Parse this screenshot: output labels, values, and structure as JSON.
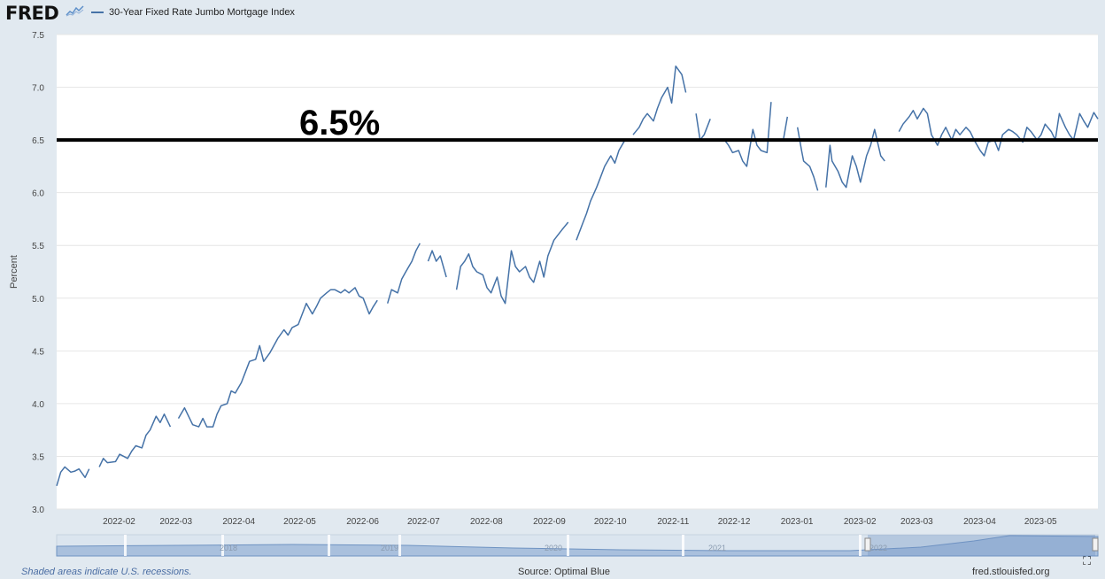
{
  "header": {
    "logo_text": "FRED",
    "legend_label": "30-Year Fixed Rate Jumbo Mortgage Index"
  },
  "colors": {
    "series": "#4572a7",
    "plot_bg": "#ffffff",
    "frame_bg": "#e1e9f0",
    "grid": "#e6e6e6",
    "reference_line": "#000000"
  },
  "footer": {
    "recession_note": "Shaded areas indicate U.S. recessions.",
    "source": "Source: Optimal Blue",
    "site": "fred.stlouisfed.org",
    "fullscreen_icon": "fullscreen-icon"
  },
  "navigator": {
    "labels": [
      "2018",
      "2019",
      "2020",
      "2021",
      "2022"
    ]
  },
  "chart_data": {
    "type": "line",
    "title": "",
    "xlabel": "",
    "ylabel": "Percent",
    "ylim": [
      3.0,
      7.5
    ],
    "y_ticks": [
      "3.0",
      "3.5",
      "4.0",
      "4.5",
      "5.0",
      "5.5",
      "6.0",
      "6.5",
      "7.0",
      "7.5"
    ],
    "x_range": [
      "2022-01-03",
      "2023-05-31"
    ],
    "x_ticks": [
      {
        "label": "2022-02",
        "date": "2022-02-01"
      },
      {
        "label": "2022-03",
        "date": "2022-03-01"
      },
      {
        "label": "2022-04",
        "date": "2022-04-01"
      },
      {
        "label": "2022-05",
        "date": "2022-05-01"
      },
      {
        "label": "2022-06",
        "date": "2022-06-01"
      },
      {
        "label": "2022-07",
        "date": "2022-07-01"
      },
      {
        "label": "2022-08",
        "date": "2022-08-01"
      },
      {
        "label": "2022-09",
        "date": "2022-09-01"
      },
      {
        "label": "2022-10",
        "date": "2022-10-01"
      },
      {
        "label": "2022-11",
        "date": "2022-11-01"
      },
      {
        "label": "2022-12",
        "date": "2022-12-01"
      },
      {
        "label": "2023-01",
        "date": "2023-01-01"
      },
      {
        "label": "2023-02",
        "date": "2023-02-01"
      },
      {
        "label": "2023-03",
        "date": "2023-03-01"
      },
      {
        "label": "2023-04",
        "date": "2023-04-01"
      },
      {
        "label": "2023-05",
        "date": "2023-05-01"
      }
    ],
    "grid": true,
    "legend_position": "top-left",
    "annotation": {
      "text": "6.5%",
      "y": 6.5
    },
    "series": [
      {
        "name": "30-Year Fixed Rate Jumbo Mortgage Index",
        "points": [
          [
            "2022-01-03",
            3.22
          ],
          [
            "2022-01-05",
            3.35
          ],
          [
            "2022-01-07",
            3.4
          ],
          [
            "2022-01-10",
            3.35
          ],
          [
            "2022-01-12",
            3.36
          ],
          [
            "2022-01-14",
            3.38
          ],
          [
            "2022-01-17",
            3.3
          ],
          [
            "2022-01-19",
            3.38
          ],
          [
            "2022-01-21",
            null
          ],
          [
            "2022-01-24",
            3.4
          ],
          [
            "2022-01-26",
            3.48
          ],
          [
            "2022-01-28",
            3.44
          ],
          [
            "2022-02-01",
            3.45
          ],
          [
            "2022-02-03",
            3.52
          ],
          [
            "2022-02-07",
            3.48
          ],
          [
            "2022-02-09",
            3.55
          ],
          [
            "2022-02-11",
            3.6
          ],
          [
            "2022-02-14",
            3.58
          ],
          [
            "2022-02-16",
            3.7
          ],
          [
            "2022-02-18",
            3.75
          ],
          [
            "2022-02-21",
            3.88
          ],
          [
            "2022-02-23",
            3.82
          ],
          [
            "2022-02-25",
            3.9
          ],
          [
            "2022-02-28",
            3.78
          ],
          [
            "2022-03-02",
            null
          ],
          [
            "2022-03-04",
            3.86
          ],
          [
            "2022-03-07",
            3.96
          ],
          [
            "2022-03-09",
            3.88
          ],
          [
            "2022-03-11",
            3.8
          ],
          [
            "2022-03-14",
            3.78
          ],
          [
            "2022-03-16",
            3.86
          ],
          [
            "2022-03-18",
            3.78
          ],
          [
            "2022-03-21",
            3.78
          ],
          [
            "2022-03-23",
            3.9
          ],
          [
            "2022-03-25",
            3.98
          ],
          [
            "2022-03-28",
            4.0
          ],
          [
            "2022-03-30",
            4.12
          ],
          [
            "2022-04-01",
            4.1
          ],
          [
            "2022-04-04",
            4.2
          ],
          [
            "2022-04-06",
            4.3
          ],
          [
            "2022-04-08",
            4.4
          ],
          [
            "2022-04-11",
            4.42
          ],
          [
            "2022-04-13",
            4.55
          ],
          [
            "2022-04-15",
            4.4
          ],
          [
            "2022-04-18",
            4.48
          ],
          [
            "2022-04-20",
            4.55
          ],
          [
            "2022-04-22",
            4.62
          ],
          [
            "2022-04-25",
            4.7
          ],
          [
            "2022-04-27",
            4.65
          ],
          [
            "2022-04-29",
            4.72
          ],
          [
            "2022-05-02",
            4.75
          ],
          [
            "2022-05-04",
            4.85
          ],
          [
            "2022-05-06",
            4.95
          ],
          [
            "2022-05-09",
            4.85
          ],
          [
            "2022-05-11",
            4.92
          ],
          [
            "2022-05-13",
            5.0
          ],
          [
            "2022-05-16",
            5.05
          ],
          [
            "2022-05-18",
            5.08
          ],
          [
            "2022-05-20",
            5.08
          ],
          [
            "2022-05-23",
            5.05
          ],
          [
            "2022-05-25",
            5.08
          ],
          [
            "2022-05-27",
            5.05
          ],
          [
            "2022-05-30",
            5.1
          ],
          [
            "2022-06-01",
            5.02
          ],
          [
            "2022-06-03",
            5.0
          ],
          [
            "2022-06-06",
            4.85
          ],
          [
            "2022-06-08",
            4.92
          ],
          [
            "2022-06-10",
            4.98
          ],
          [
            "2022-06-13",
            null
          ],
          [
            "2022-06-15",
            4.95
          ],
          [
            "2022-06-17",
            5.08
          ],
          [
            "2022-06-20",
            5.05
          ],
          [
            "2022-06-22",
            5.18
          ],
          [
            "2022-06-24",
            5.25
          ],
          [
            "2022-06-27",
            5.35
          ],
          [
            "2022-06-29",
            5.45
          ],
          [
            "2022-07-01",
            5.52
          ],
          [
            "2022-07-03",
            null
          ],
          [
            "2022-07-05",
            5.35
          ],
          [
            "2022-07-07",
            5.45
          ],
          [
            "2022-07-09",
            5.35
          ],
          [
            "2022-07-11",
            5.4
          ],
          [
            "2022-07-14",
            5.2
          ],
          [
            "2022-07-16",
            null
          ],
          [
            "2022-07-19",
            5.08
          ],
          [
            "2022-07-21",
            5.3
          ],
          [
            "2022-07-23",
            5.35
          ],
          [
            "2022-07-25",
            5.42
          ],
          [
            "2022-07-27",
            5.3
          ],
          [
            "2022-07-29",
            5.25
          ],
          [
            "2022-08-01",
            5.22
          ],
          [
            "2022-08-03",
            5.1
          ],
          [
            "2022-08-05",
            5.05
          ],
          [
            "2022-08-08",
            5.2
          ],
          [
            "2022-08-10",
            5.02
          ],
          [
            "2022-08-12",
            4.95
          ],
          [
            "2022-08-15",
            5.45
          ],
          [
            "2022-08-17",
            5.3
          ],
          [
            "2022-08-19",
            5.25
          ],
          [
            "2022-08-22",
            5.3
          ],
          [
            "2022-08-24",
            5.2
          ],
          [
            "2022-08-26",
            5.15
          ],
          [
            "2022-08-29",
            5.35
          ],
          [
            "2022-08-31",
            5.2
          ],
          [
            "2022-09-02",
            5.4
          ],
          [
            "2022-09-05",
            5.55
          ],
          [
            "2022-09-07",
            5.6
          ],
          [
            "2022-09-09",
            5.65
          ],
          [
            "2022-09-12",
            5.72
          ],
          [
            "2022-09-14",
            null
          ],
          [
            "2022-09-16",
            5.55
          ],
          [
            "2022-09-19",
            5.7
          ],
          [
            "2022-09-21",
            5.8
          ],
          [
            "2022-09-23",
            5.92
          ],
          [
            "2022-09-26",
            6.05
          ],
          [
            "2022-09-28",
            6.15
          ],
          [
            "2022-09-30",
            6.25
          ],
          [
            "2022-10-03",
            6.35
          ],
          [
            "2022-10-05",
            6.28
          ],
          [
            "2022-10-07",
            6.4
          ],
          [
            "2022-10-10",
            6.5
          ],
          [
            "2022-10-12",
            null
          ],
          [
            "2022-10-14",
            6.55
          ],
          [
            "2022-10-17",
            6.62
          ],
          [
            "2022-10-19",
            6.7
          ],
          [
            "2022-10-21",
            6.75
          ],
          [
            "2022-10-24",
            6.68
          ],
          [
            "2022-10-26",
            6.8
          ],
          [
            "2022-10-28",
            6.9
          ],
          [
            "2022-10-31",
            7.0
          ],
          [
            "2022-11-02",
            6.85
          ],
          [
            "2022-11-04",
            7.2
          ],
          [
            "2022-11-07",
            7.12
          ],
          [
            "2022-11-09",
            6.95
          ],
          [
            "2022-11-11",
            null
          ],
          [
            "2022-11-14",
            6.75
          ],
          [
            "2022-11-16",
            6.5
          ],
          [
            "2022-11-18",
            6.55
          ],
          [
            "2022-11-21",
            6.7
          ],
          [
            "2022-11-23",
            null
          ],
          [
            "2022-11-28",
            6.5
          ],
          [
            "2022-11-30",
            6.45
          ],
          [
            "2022-12-02",
            6.38
          ],
          [
            "2022-12-05",
            6.4
          ],
          [
            "2022-12-07",
            6.3
          ],
          [
            "2022-12-09",
            6.25
          ],
          [
            "2022-12-12",
            6.6
          ],
          [
            "2022-12-14",
            6.45
          ],
          [
            "2022-12-16",
            6.4
          ],
          [
            "2022-12-19",
            6.38
          ],
          [
            "2022-12-21",
            6.86
          ],
          [
            "2022-12-23",
            null
          ],
          [
            "2022-12-27",
            6.5
          ],
          [
            "2022-12-29",
            6.72
          ],
          [
            "2023-01-01",
            null
          ],
          [
            "2023-01-03",
            6.62
          ],
          [
            "2023-01-05",
            6.4
          ],
          [
            "2023-01-06",
            6.3
          ],
          [
            "2023-01-09",
            6.25
          ],
          [
            "2023-01-11",
            6.15
          ],
          [
            "2023-01-13",
            6.02
          ],
          [
            "2023-01-15",
            null
          ],
          [
            "2023-01-17",
            6.05
          ],
          [
            "2023-01-19",
            6.45
          ],
          [
            "2023-01-20",
            6.3
          ],
          [
            "2023-01-23",
            6.2
          ],
          [
            "2023-01-25",
            6.1
          ],
          [
            "2023-01-27",
            6.05
          ],
          [
            "2023-01-30",
            6.35
          ],
          [
            "2023-02-01",
            6.25
          ],
          [
            "2023-02-03",
            6.1
          ],
          [
            "2023-02-06",
            6.35
          ],
          [
            "2023-02-08",
            6.45
          ],
          [
            "2023-02-10",
            6.6
          ],
          [
            "2023-02-13",
            6.35
          ],
          [
            "2023-02-15",
            6.3
          ],
          [
            "2023-02-17",
            null
          ],
          [
            "2023-02-22",
            6.58
          ],
          [
            "2023-02-24",
            6.65
          ],
          [
            "2023-02-27",
            6.72
          ],
          [
            "2023-03-01",
            6.78
          ],
          [
            "2023-03-03",
            6.7
          ],
          [
            "2023-03-06",
            6.8
          ],
          [
            "2023-03-08",
            6.75
          ],
          [
            "2023-03-10",
            6.55
          ],
          [
            "2023-03-13",
            6.45
          ],
          [
            "2023-03-15",
            6.55
          ],
          [
            "2023-03-17",
            6.62
          ],
          [
            "2023-03-20",
            6.5
          ],
          [
            "2023-03-22",
            6.6
          ],
          [
            "2023-03-24",
            6.55
          ],
          [
            "2023-03-27",
            6.62
          ],
          [
            "2023-03-29",
            6.58
          ],
          [
            "2023-03-31",
            6.5
          ],
          [
            "2023-04-03",
            6.4
          ],
          [
            "2023-04-05",
            6.35
          ],
          [
            "2023-04-07",
            6.48
          ],
          [
            "2023-04-10",
            6.5
          ],
          [
            "2023-04-12",
            6.4
          ],
          [
            "2023-04-14",
            6.55
          ],
          [
            "2023-04-17",
            6.6
          ],
          [
            "2023-04-19",
            6.58
          ],
          [
            "2023-04-21",
            6.55
          ],
          [
            "2023-04-24",
            6.48
          ],
          [
            "2023-04-26",
            6.62
          ],
          [
            "2023-04-28",
            6.58
          ],
          [
            "2023-05-01",
            6.5
          ],
          [
            "2023-05-03",
            6.55
          ],
          [
            "2023-05-05",
            6.65
          ],
          [
            "2023-05-08",
            6.58
          ],
          [
            "2023-05-10",
            6.5
          ],
          [
            "2023-05-12",
            6.75
          ],
          [
            "2023-05-15",
            6.62
          ],
          [
            "2023-05-17",
            6.55
          ],
          [
            "2023-05-19",
            6.5
          ],
          [
            "2023-05-22",
            6.75
          ],
          [
            "2023-05-24",
            6.68
          ],
          [
            "2023-05-26",
            6.62
          ],
          [
            "2023-05-29",
            6.76
          ],
          [
            "2023-05-31",
            6.7
          ]
        ]
      }
    ]
  }
}
